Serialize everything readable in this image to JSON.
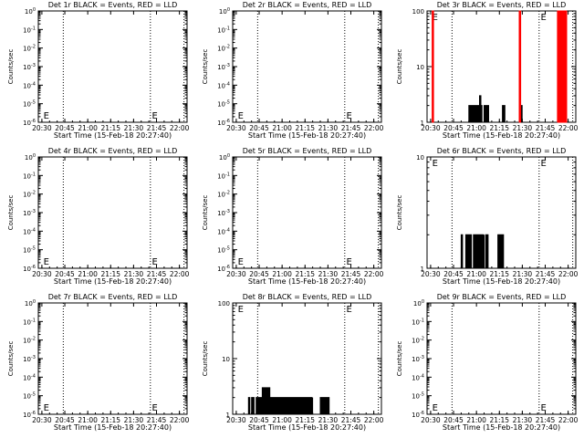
{
  "chart_data": [
    {
      "type": "line",
      "title": "Det 1r BLACK = Events, RED = LLD",
      "xlabel": "Start Time (15-Feb-18 20:27:40)",
      "ylabel": "Counts/sec",
      "x_ticks": [
        "20:30",
        "20:45",
        "21:00",
        "21:15",
        "21:30",
        "21:45",
        "22:00"
      ],
      "y_scale": "log",
      "y_ticks": [
        "10^0",
        "10^-1",
        "10^-2",
        "10^-3",
        "10^-4",
        "10^-5",
        "10^-6"
      ],
      "ylim": [
        1e-06,
        1.0
      ],
      "markers": [
        "E",
        "E"
      ],
      "series": []
    },
    {
      "type": "line",
      "title": "Det 2r BLACK = Events, RED = LLD",
      "xlabel": "Start Time (15-Feb-18 20:27:40)",
      "ylabel": "Counts/sec",
      "x_ticks": [
        "20:30",
        "20:45",
        "21:00",
        "21:15",
        "21:30",
        "21:45",
        "22:00"
      ],
      "y_scale": "log",
      "y_ticks": [
        "10^0",
        "10^-1",
        "10^-2",
        "10^-3",
        "10^-4",
        "10^-5",
        "10^-6"
      ],
      "ylim": [
        1e-06,
        1.0
      ],
      "markers": [
        "E",
        "E"
      ],
      "series": []
    },
    {
      "type": "line",
      "title": "Det 3r BLACK = Events, RED = LLD",
      "xlabel": "Start Time (15-Feb-18 20:27:40)",
      "ylabel": "Counts/sec",
      "x_ticks": [
        "20:30",
        "20:45",
        "21:00",
        "21:15",
        "21:30",
        "21:45",
        "22:00"
      ],
      "y_scale": "log",
      "y_ticks": [
        "100",
        "10",
        "1"
      ],
      "ylim": [
        1,
        100
      ],
      "markers": [
        "E",
        "E"
      ],
      "series": [
        {
          "color": "#000000",
          "bursts": [
            [
              "20:55",
              "21:04",
              2
            ],
            [
              "21:02",
              "21:03",
              3
            ],
            [
              "21:05",
              "21:08",
              2
            ],
            [
              "21:17",
              "21:19",
              2
            ],
            [
              "21:29",
              "21:30",
              2
            ]
          ]
        },
        {
          "color": "#ff0000",
          "bursts": [
            [
              "20:31",
              "20:32",
              100
            ],
            [
              "21:28",
              "21:29",
              100
            ],
            [
              "21:53",
              "21:59",
              100
            ]
          ]
        }
      ]
    },
    {
      "type": "line",
      "title": "Det 4r BLACK = Events, RED = LLD",
      "xlabel": "Start Time (15-Feb-18 20:27:40)",
      "ylabel": "Counts/sec",
      "x_ticks": [
        "20:30",
        "20:45",
        "21:00",
        "21:15",
        "21:30",
        "21:45",
        "22:00"
      ],
      "y_scale": "log",
      "y_ticks": [
        "10^0",
        "10^-1",
        "10^-2",
        "10^-3",
        "10^-4",
        "10^-5",
        "10^-6"
      ],
      "ylim": [
        1e-06,
        1.0
      ],
      "markers": [
        "E",
        "E"
      ],
      "series": []
    },
    {
      "type": "line",
      "title": "Det 5r BLACK = Events, RED = LLD",
      "xlabel": "Start Time (15-Feb-18 20:27:40)",
      "ylabel": "Counts/sec",
      "x_ticks": [
        "20:30",
        "20:45",
        "21:00",
        "21:15",
        "21:30",
        "21:45",
        "22:00"
      ],
      "y_scale": "log",
      "y_ticks": [
        "10^0",
        "10^-1",
        "10^-2",
        "10^-3",
        "10^-4",
        "10^-5",
        "10^-6"
      ],
      "ylim": [
        1e-06,
        1.0
      ],
      "markers": [
        "E",
        "E"
      ],
      "series": []
    },
    {
      "type": "line",
      "title": "Det 6r BLACK = Events, RED = LLD",
      "xlabel": "Start Time (15-Feb-18 20:27:40)",
      "ylabel": "Counts/sec",
      "x_ticks": [
        "20:30",
        "20:45",
        "21:00",
        "21:15",
        "21:30",
        "21:45",
        "22:00"
      ],
      "y_scale": "log",
      "y_ticks": [
        "10",
        "1"
      ],
      "ylim": [
        1,
        10
      ],
      "markers": [
        "E",
        "E"
      ],
      "series": [
        {
          "color": "#000000",
          "bursts": [
            [
              "20:50",
              "20:51",
              2
            ],
            [
              "20:53",
              "20:57",
              2
            ],
            [
              "20:58",
              "21:05",
              2
            ],
            [
              "21:06",
              "21:08",
              2
            ],
            [
              "21:14",
              "21:18",
              2
            ]
          ]
        }
      ]
    },
    {
      "type": "line",
      "title": "Det 7r BLACK = Events, RED = LLD",
      "xlabel": "Start Time (15-Feb-18 20:27:40)",
      "ylabel": "Counts/sec",
      "x_ticks": [
        "20:30",
        "20:45",
        "21:00",
        "21:15",
        "21:30",
        "21:45",
        "22:00"
      ],
      "y_scale": "log",
      "y_ticks": [
        "10^0",
        "10^-1",
        "10^-2",
        "10^-3",
        "10^-4",
        "10^-5",
        "10^-6"
      ],
      "ylim": [
        1e-06,
        1.0
      ],
      "markers": [
        "E",
        "E"
      ],
      "series": []
    },
    {
      "type": "line",
      "title": "Det 8r BLACK = Events, RED = LLD",
      "xlabel": "Start Time (15-Feb-18 20:27:40)",
      "ylabel": "Counts/sec",
      "x_ticks": [
        "20:30",
        "20:45",
        "21:00",
        "21:15",
        "21:30",
        "21:45",
        "22:00"
      ],
      "y_scale": "log",
      "y_ticks": [
        "100",
        "10",
        "1"
      ],
      "ylim": [
        1,
        100
      ],
      "markers": [
        "E",
        "E"
      ],
      "series": [
        {
          "color": "#000000",
          "bursts": [
            [
              "20:38",
              "20:39",
              2
            ],
            [
              "20:40",
              "20:42",
              2
            ],
            [
              "20:43",
              "20:47",
              2
            ],
            [
              "20:47",
              "20:52",
              3
            ],
            [
              "20:52",
              "21:20",
              2
            ],
            [
              "21:25",
              "21:31",
              2
            ]
          ]
        }
      ]
    },
    {
      "type": "line",
      "title": "Det 9r BLACK = Events, RED = LLD",
      "xlabel": "Start Time (15-Feb-18 20:27:40)",
      "ylabel": "Counts/sec",
      "x_ticks": [
        "20:30",
        "20:45",
        "21:00",
        "21:15",
        "21:30",
        "21:45",
        "22:00"
      ],
      "y_scale": "log",
      "y_ticks": [
        "10^0",
        "10^-1",
        "10^-2",
        "10^-3",
        "10^-4",
        "10^-5",
        "10^-6"
      ],
      "ylim": [
        1e-06,
        1.0
      ],
      "markers": [
        "E",
        "E"
      ],
      "series": []
    }
  ]
}
